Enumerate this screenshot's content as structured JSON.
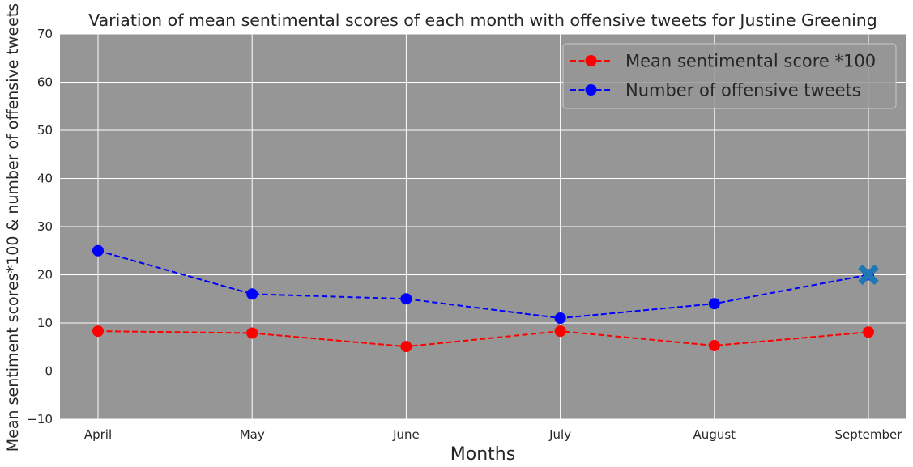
{
  "chart_data": {
    "type": "line",
    "title": "Variation of mean sentimental scores of each month with offensive tweets for Justine Greening",
    "xlabel": "Months",
    "ylabel": "Mean sentiment scores*100 & number of offensive tweets",
    "categories": [
      "April",
      "May",
      "June",
      "July",
      "August",
      "September"
    ],
    "ylim": [
      -10,
      70
    ],
    "yticks": [
      -10,
      0,
      10,
      20,
      30,
      40,
      50,
      60,
      70
    ],
    "grid": true,
    "legend_position": "top-right",
    "background_color": "#969696",
    "grid_color": "#ffffff",
    "series": [
      {
        "name": "Mean sentimental score *100",
        "values": [
          8.3,
          7.9,
          5.1,
          8.3,
          5.3,
          8.1
        ],
        "color": "#ff0000",
        "line_style": "dashed",
        "marker": "circle"
      },
      {
        "name": "Number of offensive tweets",
        "values": [
          25,
          16,
          15,
          11,
          14,
          20
        ],
        "color": "#0000ff",
        "line_style": "dashed",
        "marker": "circle"
      }
    ],
    "annotations": [
      {
        "type": "x-marker",
        "category": "September",
        "value": 20,
        "color": "#1f77b4"
      }
    ]
  }
}
